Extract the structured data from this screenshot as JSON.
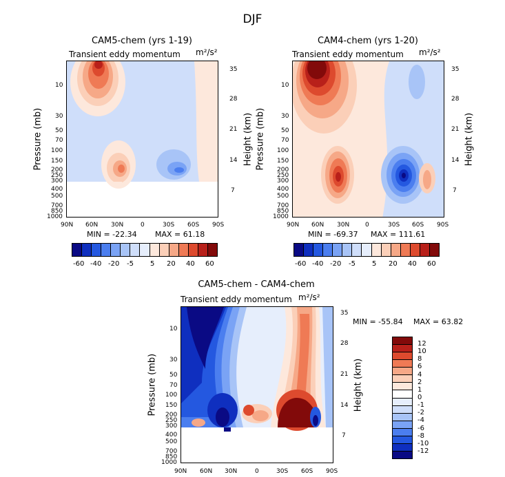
{
  "page_title": "DJF",
  "chart_data": [
    {
      "type": "heatmap",
      "title": "CAM5-chem (yrs 1-19)",
      "subtitle": "Transient eddy momentum",
      "units": "m²/s²",
      "xlabel": "",
      "ylabel": "Pressure (mb)",
      "y2label": "Height (km)",
      "xticks": [
        "90N",
        "60N",
        "30N",
        "0",
        "30S",
        "60S",
        "90S"
      ],
      "yticks": [
        "10",
        "30",
        "50",
        "70",
        "100",
        "150",
        "200",
        "250",
        "300",
        "400",
        "500",
        "700",
        "850",
        "1000"
      ],
      "y2ticks": [
        "35",
        "28",
        "21",
        "14",
        "7"
      ],
      "min_label": "MIN = -22.34",
      "max_label": "MAX = 61.18",
      "colorbar_labels": [
        "-60",
        "-40",
        "-20",
        "-5",
        "5",
        "20",
        "40",
        "60"
      ],
      "colorbar_levels": [
        -60,
        -50,
        -40,
        -30,
        -20,
        -10,
        -5,
        0,
        5,
        10,
        20,
        30,
        40,
        50,
        60
      ]
    },
    {
      "type": "heatmap",
      "title": "CAM4-chem (yrs 1-20)",
      "subtitle": "Transient eddy momentum",
      "units": "m²/s²",
      "xlabel": "",
      "ylabel": "Pressure (mb)",
      "y2label": "Height (km)",
      "xticks": [
        "90N",
        "60N",
        "30N",
        "0",
        "30S",
        "60S",
        "90S"
      ],
      "yticks": [
        "10",
        "30",
        "50",
        "70",
        "100",
        "150",
        "200",
        "250",
        "300",
        "400",
        "500",
        "700",
        "850",
        "1000"
      ],
      "y2ticks": [
        "35",
        "28",
        "21",
        "14",
        "7"
      ],
      "min_label": "MIN = -69.37",
      "max_label": "MAX = 111.61",
      "colorbar_labels": [
        "-60",
        "-40",
        "-20",
        "-5",
        "5",
        "20",
        "40",
        "60"
      ],
      "colorbar_levels": [
        -60,
        -50,
        -40,
        -30,
        -20,
        -10,
        -5,
        0,
        5,
        10,
        20,
        30,
        40,
        50,
        60
      ]
    },
    {
      "type": "heatmap",
      "title": "CAM5-chem - CAM4-chem",
      "subtitle": "Transient eddy momentum",
      "units": "m²/s²",
      "xlabel": "",
      "ylabel": "Pressure (mb)",
      "y2label": "Height (km)",
      "xticks": [
        "90N",
        "60N",
        "30N",
        "0",
        "30S",
        "60S",
        "90S"
      ],
      "yticks": [
        "10",
        "30",
        "50",
        "70",
        "100",
        "150",
        "200",
        "250",
        "300",
        "400",
        "500",
        "700",
        "850",
        "1000"
      ],
      "y2ticks": [
        "35",
        "28",
        "21",
        "14",
        "7"
      ],
      "min_label": "MIN = -55.84",
      "max_label": "MAX = 63.82",
      "colorbar_labels": [
        "12",
        "10",
        "8",
        "6",
        "4",
        "2",
        "1",
        "0",
        "-1",
        "-2",
        "-4",
        "-6",
        "-8",
        "-10",
        "-12"
      ],
      "colorbar_levels": [
        12,
        10,
        8,
        6,
        4,
        2,
        1,
        0,
        -1,
        -2,
        -4,
        -6,
        -8,
        -10,
        -12
      ]
    }
  ],
  "colors": {
    "palette": [
      "#0a0a84",
      "#0f2fbf",
      "#2458e0",
      "#4b7eef",
      "#7aa3f5",
      "#a8c4f7",
      "#cfdefa",
      "#e6eefc",
      "#fde8dc",
      "#fbcfb8",
      "#f6a887",
      "#ef7a55",
      "#dd4a2e",
      "#b8201a",
      "#820a0a"
    ]
  }
}
